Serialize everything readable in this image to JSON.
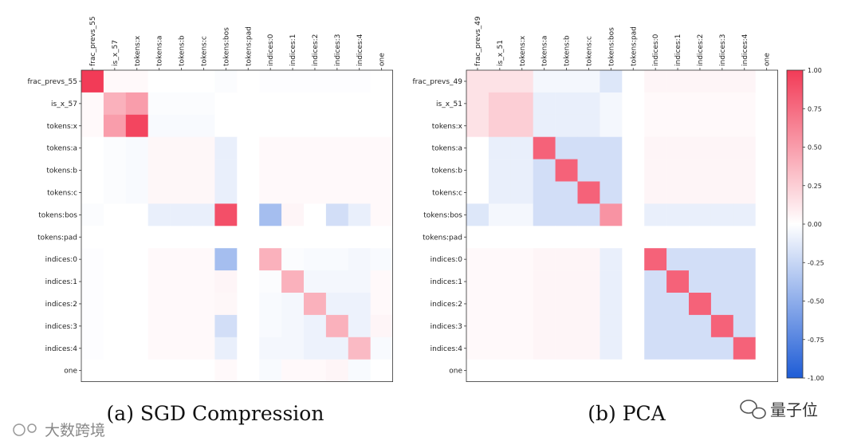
{
  "chart_data": [
    {
      "type": "heatmap",
      "title": "(a) SGD Compression",
      "row_labels": [
        "frac_prevs_55",
        "is_x_57",
        "tokens:x",
        "tokens:a",
        "tokens:b",
        "tokens:c",
        "tokens:bos",
        "tokens:pad",
        "indices:0",
        "indices:1",
        "indices:2",
        "indices:3",
        "indices:4",
        "one"
      ],
      "col_labels": [
        "frac_prevs_55",
        "is_x_57",
        "tokens:x",
        "tokens:a",
        "tokens:b",
        "tokens:c",
        "tokens:bos",
        "tokens:pad",
        "indices:0",
        "indices:1",
        "indices:2",
        "indices:3",
        "indices:4",
        "one"
      ],
      "values": [
        [
          1.0,
          0.03,
          0.03,
          0.0,
          0.0,
          0.0,
          -0.02,
          0.0,
          -0.01,
          -0.01,
          -0.01,
          -0.01,
          -0.01,
          0.0
        ],
        [
          0.03,
          0.4,
          0.5,
          -0.02,
          -0.02,
          -0.02,
          0.0,
          0.0,
          0.0,
          0.0,
          0.0,
          0.0,
          0.0,
          0.0
        ],
        [
          0.03,
          0.5,
          0.95,
          -0.03,
          -0.03,
          -0.03,
          0.0,
          0.0,
          0.0,
          0.0,
          0.0,
          0.0,
          0.0,
          0.0
        ],
        [
          0.0,
          -0.02,
          -0.03,
          0.04,
          0.04,
          0.04,
          -0.1,
          0.0,
          0.03,
          0.03,
          0.03,
          0.03,
          0.03,
          0.03
        ],
        [
          0.0,
          -0.02,
          -0.03,
          0.04,
          0.04,
          0.04,
          -0.1,
          0.0,
          0.03,
          0.03,
          0.03,
          0.03,
          0.03,
          0.03
        ],
        [
          0.0,
          -0.02,
          -0.03,
          0.04,
          0.04,
          0.04,
          -0.1,
          0.0,
          0.03,
          0.03,
          0.03,
          0.03,
          0.03,
          0.03
        ],
        [
          -0.02,
          0.0,
          0.0,
          -0.1,
          -0.1,
          -0.1,
          0.9,
          0.0,
          -0.4,
          0.05,
          0.0,
          -0.2,
          -0.1,
          0.03
        ],
        [
          0.0,
          0.0,
          0.0,
          0.0,
          0.0,
          0.0,
          0.0,
          0.0,
          0.0,
          0.0,
          0.0,
          0.0,
          0.0,
          0.0
        ],
        [
          -0.01,
          0.0,
          0.0,
          0.03,
          0.03,
          0.03,
          -0.4,
          0.0,
          0.4,
          -0.02,
          -0.03,
          -0.03,
          -0.05,
          -0.03
        ],
        [
          -0.01,
          0.0,
          0.0,
          0.03,
          0.03,
          0.03,
          0.05,
          0.0,
          -0.02,
          0.4,
          -0.05,
          -0.05,
          -0.05,
          0.03
        ],
        [
          -0.01,
          0.0,
          0.0,
          0.03,
          0.03,
          0.03,
          0.04,
          0.0,
          -0.03,
          -0.05,
          0.4,
          -0.08,
          -0.08,
          0.03
        ],
        [
          -0.01,
          0.0,
          0.0,
          0.03,
          0.03,
          0.03,
          -0.2,
          0.0,
          -0.03,
          -0.05,
          -0.08,
          0.4,
          -0.08,
          0.05
        ],
        [
          -0.01,
          0.0,
          0.0,
          0.03,
          0.03,
          0.03,
          -0.1,
          0.0,
          -0.05,
          -0.05,
          -0.08,
          -0.08,
          0.35,
          -0.03
        ],
        [
          0.0,
          0.0,
          0.0,
          0.0,
          0.0,
          0.0,
          0.03,
          0.0,
          -0.03,
          0.03,
          0.03,
          0.05,
          -0.03,
          0.0
        ]
      ],
      "vmin": -1.0,
      "vmax": 1.0
    },
    {
      "type": "heatmap",
      "title": "(b) PCA",
      "row_labels": [
        "frac_prevs_49",
        "is_x_51",
        "tokens:x",
        "tokens:a",
        "tokens:b",
        "tokens:c",
        "tokens:bos",
        "tokens:pad",
        "indices:0",
        "indices:1",
        "indices:2",
        "indices:3",
        "indices:4",
        "one"
      ],
      "col_labels": [
        "frac_prevs_49",
        "is_x_51",
        "tokens:x",
        "tokens:a",
        "tokens:b",
        "tokens:c",
        "tokens:bos",
        "tokens:pad",
        "indices:0",
        "indices:1",
        "indices:2",
        "indices:3",
        "indices:4",
        "one"
      ],
      "values": [
        [
          0.15,
          0.15,
          0.15,
          -0.05,
          -0.05,
          -0.05,
          -0.15,
          0.0,
          0.05,
          0.05,
          0.05,
          0.05,
          0.05,
          0.0
        ],
        [
          0.15,
          0.25,
          0.25,
          -0.1,
          -0.1,
          -0.1,
          -0.05,
          0.0,
          0.03,
          0.03,
          0.03,
          0.03,
          0.03,
          0.0
        ],
        [
          0.15,
          0.25,
          0.25,
          -0.1,
          -0.1,
          -0.1,
          -0.05,
          0.0,
          0.03,
          0.03,
          0.03,
          0.03,
          0.03,
          0.0
        ],
        [
          0.0,
          -0.1,
          -0.1,
          0.8,
          -0.2,
          -0.2,
          -0.2,
          0.0,
          0.05,
          0.05,
          0.05,
          0.05,
          0.05,
          0.0
        ],
        [
          0.0,
          -0.1,
          -0.1,
          -0.2,
          0.8,
          -0.2,
          -0.2,
          0.0,
          0.05,
          0.05,
          0.05,
          0.05,
          0.05,
          0.0
        ],
        [
          0.0,
          -0.1,
          -0.1,
          -0.2,
          -0.2,
          0.8,
          -0.2,
          0.0,
          0.05,
          0.05,
          0.05,
          0.05,
          0.05,
          0.0
        ],
        [
          -0.15,
          -0.05,
          -0.05,
          -0.2,
          -0.2,
          -0.2,
          0.55,
          0.0,
          -0.1,
          -0.1,
          -0.1,
          -0.1,
          -0.1,
          0.0
        ],
        [
          0.0,
          0.0,
          0.0,
          0.0,
          0.0,
          0.0,
          0.0,
          0.0,
          0.0,
          0.0,
          0.0,
          0.0,
          0.0,
          0.0
        ],
        [
          0.03,
          0.03,
          0.03,
          0.05,
          0.05,
          0.05,
          -0.1,
          0.0,
          0.8,
          -0.2,
          -0.2,
          -0.2,
          -0.2,
          0.0
        ],
        [
          0.03,
          0.03,
          0.03,
          0.05,
          0.05,
          0.05,
          -0.1,
          0.0,
          -0.2,
          0.8,
          -0.2,
          -0.2,
          -0.2,
          0.0
        ],
        [
          0.03,
          0.03,
          0.03,
          0.05,
          0.05,
          0.05,
          -0.1,
          0.0,
          -0.2,
          -0.2,
          0.8,
          -0.2,
          -0.2,
          0.0
        ],
        [
          0.03,
          0.03,
          0.03,
          0.05,
          0.05,
          0.05,
          -0.1,
          0.0,
          -0.2,
          -0.2,
          -0.2,
          0.8,
          -0.2,
          0.0
        ],
        [
          0.03,
          0.03,
          0.03,
          0.05,
          0.05,
          0.05,
          -0.1,
          0.0,
          -0.2,
          -0.2,
          -0.2,
          -0.2,
          0.8,
          0.0
        ],
        [
          0.0,
          0.0,
          0.0,
          0.0,
          0.0,
          0.0,
          0.0,
          0.0,
          0.0,
          0.0,
          0.0,
          0.0,
          0.0,
          0.0
        ]
      ],
      "vmin": -1.0,
      "vmax": 1.0
    }
  ],
  "colorbar": {
    "ticks": [
      "1.00",
      "0.75",
      "0.50",
      "0.25",
      "0.00",
      "-0.25",
      "-0.50",
      "-0.75",
      "-1.00"
    ],
    "tick_values": [
      1.0,
      0.75,
      0.5,
      0.25,
      0.0,
      -0.25,
      -0.5,
      -0.75,
      -1.0
    ],
    "colors": {
      "high": "#f23b57",
      "mid": "#ffffff",
      "low": "#1e5cd6"
    }
  },
  "watermarks": {
    "left": "大数跨境",
    "right": "量子位"
  }
}
